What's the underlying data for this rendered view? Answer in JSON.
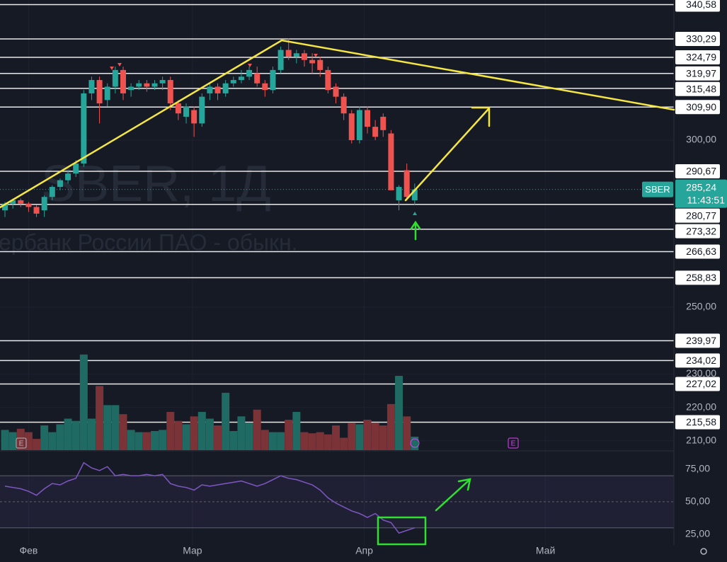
{
  "chart_data": {
    "type": "candlestick",
    "symbol": "SBER",
    "watermark": "SBER, 1Д",
    "watermark_subtitle": "ербанк России ПАО - обыкн.",
    "x": [
      0,
      1,
      2,
      3,
      4,
      5,
      6,
      7,
      8,
      9,
      10,
      11,
      12,
      13,
      14,
      15,
      16,
      17,
      18,
      19,
      20,
      21,
      22,
      23,
      24,
      25,
      26,
      27,
      28,
      29,
      30,
      31,
      32,
      33,
      34,
      35,
      36,
      37,
      38,
      39,
      40,
      41,
      42,
      43,
      44,
      45,
      46,
      47,
      48,
      49,
      50,
      51,
      52
    ],
    "xlim": [
      -0.63,
      84.9
    ],
    "xticks": [
      {
        "value": 3.0,
        "label": "Фев"
      },
      {
        "value": 23.8,
        "label": "Мар"
      },
      {
        "value": 45.6,
        "label": "Апр"
      },
      {
        "value": 68.6,
        "label": "Май"
      }
    ],
    "open": [
      279,
      281,
      282,
      281,
      280,
      279,
      283,
      286,
      288,
      290,
      293,
      314,
      318,
      312,
      316,
      321,
      315,
      316,
      317,
      316,
      317,
      318,
      311,
      307,
      309,
      305,
      314,
      316,
      314,
      317,
      318,
      319,
      320,
      317,
      315,
      321,
      327,
      325,
      326,
      324,
      324,
      321,
      316,
      313,
      308,
      300,
      309,
      304,
      307,
      302,
      282,
      291,
      282
    ],
    "high": [
      281.5,
      282.5,
      282.5,
      281.5,
      280.5,
      283.5,
      286.5,
      288.5,
      291,
      294,
      315,
      319,
      319,
      317,
      322,
      322,
      317,
      318,
      318,
      318,
      319,
      319,
      312,
      311,
      310,
      314,
      317,
      317,
      318,
      319,
      321,
      322,
      322,
      318,
      322,
      328,
      330.5,
      327,
      327,
      326,
      325,
      322,
      317,
      314,
      309,
      310,
      310,
      306,
      308,
      303,
      286.5,
      293,
      287
    ],
    "low": [
      277,
      279.5,
      280,
      278.5,
      277,
      277,
      282,
      285,
      287,
      289,
      292,
      312,
      305,
      310,
      314,
      312,
      313,
      315,
      314.5,
      315,
      315,
      309,
      306,
      305,
      301,
      304,
      312,
      312,
      313,
      316,
      317,
      318,
      316,
      313,
      314,
      320,
      324,
      323,
      322,
      320,
      319,
      314,
      311,
      306,
      299,
      299,
      302,
      300,
      301,
      285,
      279,
      282,
      280.5
    ],
    "close": [
      281,
      282,
      281,
      280,
      278,
      283,
      286,
      288,
      290,
      293,
      314,
      318,
      311,
      316,
      321,
      314,
      316,
      317,
      316,
      317,
      318,
      311,
      308,
      310,
      305,
      313,
      316,
      314,
      317,
      318,
      319,
      321,
      317,
      315,
      321,
      327,
      325,
      326,
      324,
      323,
      321,
      315,
      313,
      308,
      300,
      309,
      304,
      301,
      303,
      285,
      286,
      283,
      285.24
    ],
    "up_color": "#26a69a",
    "down_color": "#ef5350",
    "ylim": [
      207.2,
      341.95
    ],
    "yticks": [
      {
        "value": 300,
        "label": "300,00"
      },
      {
        "value": 250,
        "label": "250,00"
      },
      {
        "value": 230,
        "label": "230,00"
      },
      {
        "value": 220,
        "label": "220,00"
      },
      {
        "value": 210,
        "label": "210,00"
      }
    ],
    "levels": [
      {
        "value": 340.58,
        "label": "340,58"
      },
      {
        "value": 330.29,
        "label": "330,29"
      },
      {
        "value": 324.79,
        "label": "324,79"
      },
      {
        "value": 319.97,
        "label": "319,97"
      },
      {
        "value": 315.48,
        "label": "315,48"
      },
      {
        "value": 309.9,
        "label": "309,90"
      },
      {
        "value": 290.67,
        "label": "290,67"
      },
      {
        "value": 280.77,
        "label": "280,77"
      },
      {
        "value": 273.32,
        "label": "273,32"
      },
      {
        "value": 266.63,
        "label": "266,63"
      },
      {
        "value": 258.83,
        "label": "258,83"
      },
      {
        "value": 239.97,
        "label": "239,97"
      },
      {
        "value": 234.02,
        "label": "234,02"
      },
      {
        "value": 227.02,
        "label": "227,02"
      },
      {
        "value": 215.58,
        "label": "215,58"
      }
    ],
    "last_price": {
      "value": 285.24,
      "label": "285,24"
    },
    "countdown": "11:43:51",
    "volume": [
      9,
      8,
      9.5,
      8,
      5,
      11,
      8,
      11.5,
      14,
      13,
      42.5,
      14,
      28.5,
      20,
      20,
      16,
      9,
      8,
      8,
      8.5,
      9,
      17,
      13,
      11.5,
      15,
      17,
      14,
      11,
      25.5,
      8.5,
      15,
      12,
      18,
      9,
      8,
      8,
      13.5,
      17,
      8,
      7.5,
      8,
      7,
      11,
      5.5,
      12,
      11.5,
      13.5,
      12,
      11,
      20.5,
      33,
      15,
      6
    ],
    "volume_ylim": [
      0,
      200
    ],
    "volume_up_color": "#1f6b63",
    "volume_down_color": "#7b3337",
    "event_markers": [
      "E",
      "E"
    ],
    "rsi": {
      "color": "#7e57c2",
      "values": [
        62,
        61,
        60,
        58,
        55,
        60,
        64,
        63,
        66,
        68,
        80,
        76,
        74,
        77,
        70,
        71,
        70,
        70,
        71,
        70,
        71,
        64,
        62,
        61,
        59,
        63,
        62,
        63,
        64,
        65,
        66,
        64,
        62,
        64,
        67,
        70,
        68,
        67,
        65,
        63,
        59,
        53,
        49,
        46,
        43,
        41,
        38,
        41,
        36,
        34,
        26,
        28,
        30
      ],
      "ylim": [
        16.8,
        89.1
      ],
      "yticks": [
        {
          "value": 75,
          "label": "75,00"
        },
        {
          "value": 50,
          "label": "50,00"
        },
        {
          "value": 25,
          "label": "25,00"
        }
      ],
      "bands": [
        70,
        50,
        30
      ]
    }
  }
}
